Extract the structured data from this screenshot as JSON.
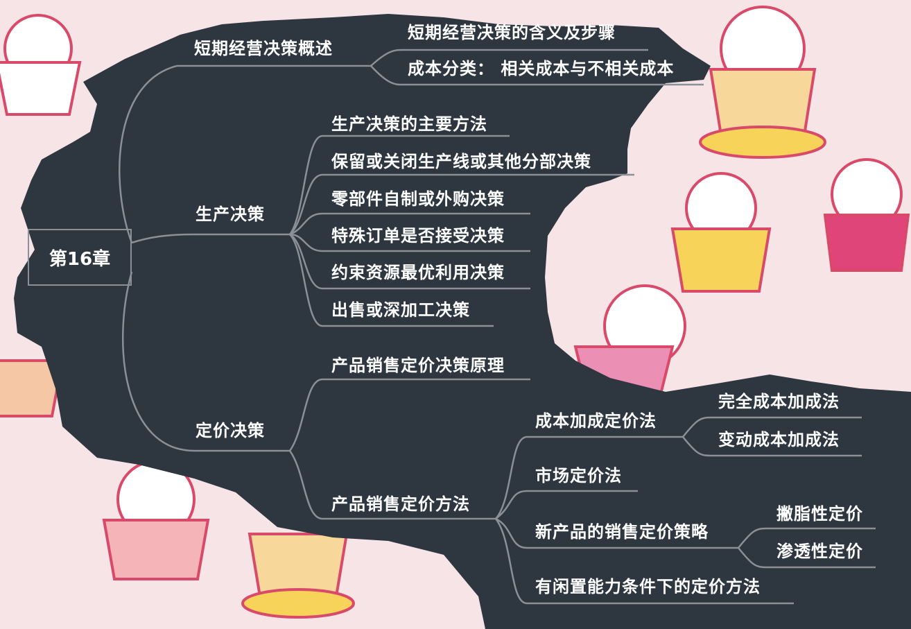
{
  "mindmap": {
    "root": "第16章",
    "branches": [
      {
        "label": "短期经营决策概述",
        "children": [
          "短期经营决策的含义及步骤",
          "成本分类： 相关成本与不相关成本"
        ]
      },
      {
        "label": "生产决策",
        "children": [
          "生产决策的主要方法",
          "保留或关闭生产线或其他分部决策",
          "零部件自制或外购决策",
          "特殊订单是否接受决策",
          "约束资源最优利用决策",
          "出售或深加工决策"
        ]
      },
      {
        "label": "定价决策",
        "children": [
          {
            "label": "产品销售定价决策原理"
          },
          {
            "label": "产品销售定价方法",
            "children": [
              {
                "label": "成本加成定价法",
                "children": [
                  "完全成本加成法",
                  "变动成本加成法"
                ]
              },
              {
                "label": "市场定价法"
              },
              {
                "label": "新产品的销售定价策略",
                "children": [
                  "撇脂性定价",
                  "渗透性定价"
                ]
              },
              {
                "label": "有闲置能力条件下的定价方法"
              }
            ]
          }
        ]
      }
    ]
  },
  "colors": {
    "panel": "#2e3640",
    "connector": "#8a9096",
    "text": "#ffffff",
    "background": "#f7e4e6",
    "decor_bear": "#ffffff",
    "decor_outline": "#d94a6a",
    "decor_yellow": "#f7d35a",
    "decor_pink": "#ec8fb4"
  }
}
